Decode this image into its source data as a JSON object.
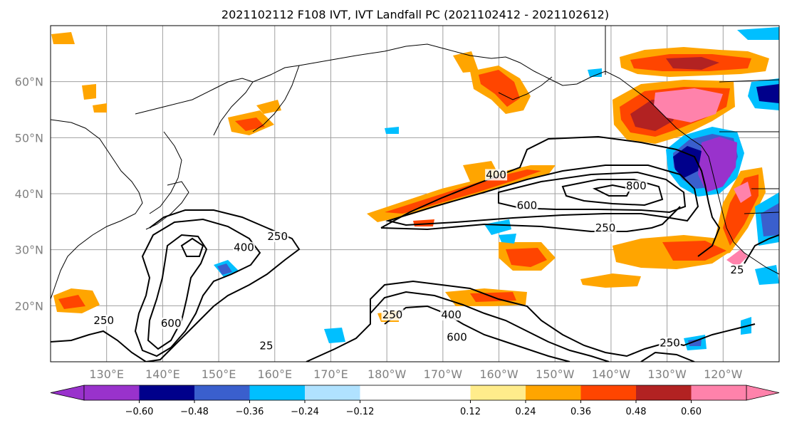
{
  "title": "2021102112 F108 IVT, IVT Landfall PC (2021102412 - 2021102612)",
  "map": {
    "lon_range": [
      120,
      250
    ],
    "lat_range": [
      10,
      70
    ],
    "lat_ticks": [
      {
        "lat": 60,
        "label": "60°N"
      },
      {
        "lat": 50,
        "label": "50°N"
      },
      {
        "lat": 40,
        "label": "40°N"
      },
      {
        "lat": 30,
        "label": "30°N"
      },
      {
        "lat": 20,
        "label": "20°N"
      }
    ],
    "lon_ticks": [
      {
        "lon": 130,
        "label": "130°E"
      },
      {
        "lon": 140,
        "label": "140°E"
      },
      {
        "lon": 150,
        "label": "150°E"
      },
      {
        "lon": 160,
        "label": "160°E"
      },
      {
        "lon": 170,
        "label": "170°E"
      },
      {
        "lon": 180,
        "label": "180°W"
      },
      {
        "lon": 190,
        "label": "170°W"
      },
      {
        "lon": 200,
        "label": "160°W"
      },
      {
        "lon": 210,
        "label": "150°W"
      },
      {
        "lon": 220,
        "label": "140°W"
      },
      {
        "lon": 230,
        "label": "130°W"
      },
      {
        "lon": 240,
        "label": "120°W"
      }
    ],
    "grid": true,
    "ivt_contour_labels": [
      {
        "text": "250",
        "lon": 160.5,
        "lat": 32.0
      },
      {
        "text": "400",
        "lon": 154.5,
        "lat": 30.0
      },
      {
        "text": "600",
        "lon": 141.5,
        "lat": 16.5
      },
      {
        "text": "250",
        "lon": 129.5,
        "lat": 17.0
      },
      {
        "text": "400",
        "lon": 199.5,
        "lat": 43.0
      },
      {
        "text": "800",
        "lon": 224.5,
        "lat": 41.0
      },
      {
        "text": "600",
        "lon": 205.0,
        "lat": 37.5
      },
      {
        "text": "250",
        "lon": 219.0,
        "lat": 33.5
      },
      {
        "text": "250",
        "lon": 181.0,
        "lat": 18.0
      },
      {
        "text": "400",
        "lon": 191.5,
        "lat": 18.0
      },
      {
        "text": "600",
        "lon": 192.5,
        "lat": 14.0
      },
      {
        "text": "250",
        "lon": 230.5,
        "lat": 13.0
      },
      {
        "text": "25",
        "lon": 158.5,
        "lat": 12.5
      },
      {
        "text": "25",
        "lon": 242.5,
        "lat": 26.0
      }
    ]
  },
  "colorbar": {
    "boundaries": [
      -0.72,
      -0.6,
      -0.48,
      -0.36,
      -0.24,
      -0.12,
      0.12,
      0.24,
      0.36,
      0.48,
      0.6,
      0.72
    ],
    "colors": [
      "#9932cc",
      "#00008b",
      "#3a5fcd",
      "#00bfff",
      "#b0e2ff",
      "#ffffff",
      "#ffec8b",
      "#ffa500",
      "#ff4500",
      "#b22222",
      "#ff82ab"
    ],
    "extend_colors": [
      "#9932cc",
      "#ff82ab"
    ],
    "tick_labels": [
      "−0.60",
      "−0.48",
      "−0.36",
      "−0.24",
      "−0.12",
      "0.12",
      "0.24",
      "0.36",
      "0.48",
      "0.60"
    ],
    "tick_values": [
      -0.6,
      -0.48,
      -0.36,
      -0.24,
      -0.12,
      0.12,
      0.24,
      0.36,
      0.48,
      0.6
    ]
  }
}
